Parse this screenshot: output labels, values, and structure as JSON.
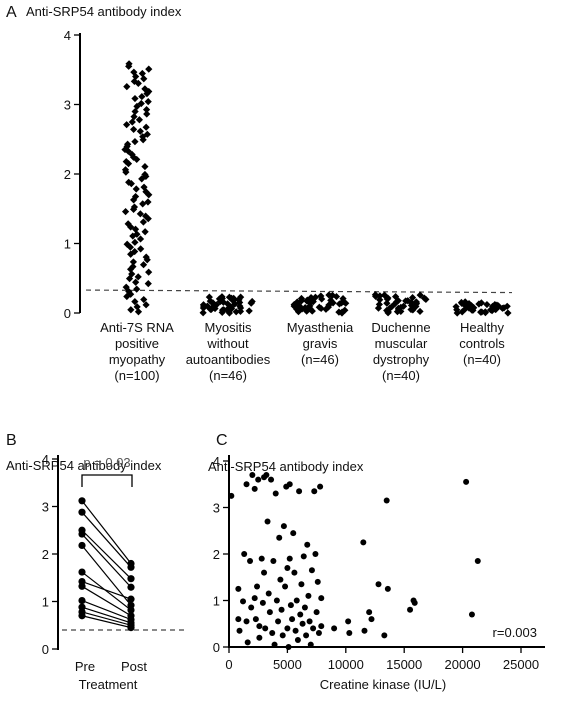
{
  "panels": {
    "a": {
      "letter": "A",
      "title": "Anti-SRP54 antibody index",
      "chart_data": {
        "type": "scatter",
        "subtype": "dot-strip",
        "ylim": [
          0,
          4
        ],
        "yticks": [
          "0",
          "1",
          "2",
          "3",
          "4"
        ],
        "cutoff": 0.33,
        "groups": [
          {
            "lines": [
              "Anti-7S RNA",
              "positive",
              "myopathy",
              "(n=100)"
            ],
            "n": 100,
            "min": 0.0,
            "max": 3.6
          },
          {
            "lines": [
              "Myositis",
              "without",
              "autoantibodies",
              "(n=46)"
            ],
            "n": 46,
            "min": 0.0,
            "max": 0.24
          },
          {
            "lines": [
              "Myasthenia",
              "gravis",
              "(n=46)"
            ],
            "n": 46,
            "min": 0.0,
            "max": 0.26
          },
          {
            "lines": [
              "Duchenne",
              "muscular",
              "dystrophy",
              "(n=40)"
            ],
            "n": 40,
            "min": 0.0,
            "max": 0.27
          },
          {
            "lines": [
              "Healthy",
              "controls",
              "(n=40)"
            ],
            "n": 40,
            "min": 0.0,
            "max": 0.16
          }
        ]
      }
    },
    "b": {
      "letter": "B",
      "title": "Anti-SRP54 antibody index",
      "pvalue": "p = 0.03",
      "xlabel": "Treatment",
      "chart_data": {
        "type": "line",
        "subtype": "paired",
        "categories": [
          "Pre",
          "Post"
        ],
        "ylim": [
          0,
          4
        ],
        "yticks": [
          "0",
          "1",
          "2",
          "3",
          "4"
        ],
        "cutoff": 0.4,
        "pairs": [
          [
            3.12,
            1.8
          ],
          [
            2.88,
            1.72
          ],
          [
            2.5,
            1.48
          ],
          [
            2.42,
            1.3
          ],
          [
            2.18,
            0.92
          ],
          [
            1.62,
            0.82
          ],
          [
            1.42,
            1.05
          ],
          [
            1.32,
            0.7
          ],
          [
            1.02,
            0.62
          ],
          [
            0.88,
            0.55
          ],
          [
            0.78,
            0.5
          ],
          [
            0.7,
            0.45
          ]
        ]
      }
    },
    "c": {
      "letter": "C",
      "title": "Anti-SRP54 antibody index",
      "xlabel": "Creatine kinase (IU/L)",
      "annotation": "r=0.003",
      "chart_data": {
        "type": "scatter",
        "xlim": [
          0,
          25000
        ],
        "ylim": [
          0,
          4
        ],
        "xticks": [
          "0",
          "5000",
          "10000",
          "15000",
          "20000",
          "25000"
        ],
        "yticks": [
          "0",
          "1",
          "2",
          "3",
          "4"
        ],
        "points": [
          [
            200,
            3.25
          ],
          [
            800,
            1.25
          ],
          [
            900,
            0.35
          ],
          [
            1200,
            0.98
          ],
          [
            1500,
            3.5
          ],
          [
            1500,
            0.55
          ],
          [
            1600,
            0.1
          ],
          [
            1800,
            1.85
          ],
          [
            1900,
            0.85
          ],
          [
            2000,
            3.7
          ],
          [
            2200,
            3.4
          ],
          [
            2200,
            1.05
          ],
          [
            2300,
            0.6
          ],
          [
            2400,
            1.3
          ],
          [
            2500,
            3.6
          ],
          [
            2600,
            0.45
          ],
          [
            2600,
            0.2
          ],
          [
            2800,
            1.9
          ],
          [
            2900,
            0.95
          ],
          [
            3000,
            3.65
          ],
          [
            3000,
            1.6
          ],
          [
            3100,
            0.4
          ],
          [
            3200,
            3.7
          ],
          [
            3300,
            2.7
          ],
          [
            3400,
            1.15
          ],
          [
            3500,
            0.75
          ],
          [
            3600,
            3.6
          ],
          [
            3700,
            0.3
          ],
          [
            3800,
            1.85
          ],
          [
            3900,
            0.05
          ],
          [
            4000,
            3.3
          ],
          [
            4100,
            1.0
          ],
          [
            4200,
            0.55
          ],
          [
            4300,
            2.35
          ],
          [
            4400,
            1.45
          ],
          [
            4500,
            0.8
          ],
          [
            4600,
            0.25
          ],
          [
            4700,
            2.6
          ],
          [
            4800,
            1.3
          ],
          [
            4900,
            3.45
          ],
          [
            5000,
            0.4
          ],
          [
            5000,
            1.7
          ],
          [
            5100,
            0.0
          ],
          [
            5200,
            3.5
          ],
          [
            5200,
            1.9
          ],
          [
            5300,
            0.9
          ],
          [
            5400,
            0.6
          ],
          [
            5500,
            2.45
          ],
          [
            5600,
            1.6
          ],
          [
            5700,
            0.35
          ],
          [
            5800,
            1.0
          ],
          [
            5900,
            0.15
          ],
          [
            6000,
            3.35
          ],
          [
            6100,
            0.7
          ],
          [
            6200,
            1.35
          ],
          [
            6300,
            0.5
          ],
          [
            6400,
            1.95
          ],
          [
            6500,
            0.85
          ],
          [
            6600,
            0.25
          ],
          [
            6700,
            2.2
          ],
          [
            6800,
            1.1
          ],
          [
            6900,
            0.55
          ],
          [
            7000,
            0.05
          ],
          [
            7100,
            1.65
          ],
          [
            7200,
            0.4
          ],
          [
            7300,
            3.35
          ],
          [
            7400,
            2.0
          ],
          [
            7500,
            0.75
          ],
          [
            7600,
            1.4
          ],
          [
            7700,
            0.3
          ],
          [
            7800,
            3.45
          ],
          [
            7900,
            1.05
          ],
          [
            7900,
            0.45
          ],
          [
            800,
            0.6
          ],
          [
            1300,
            2.0
          ],
          [
            10200,
            0.55
          ],
          [
            10300,
            0.3
          ],
          [
            11500,
            2.25
          ],
          [
            11600,
            0.35
          ],
          [
            12000,
            0.75
          ],
          [
            12200,
            0.6
          ],
          [
            12800,
            1.35
          ],
          [
            13300,
            0.25
          ],
          [
            13500,
            3.15
          ],
          [
            13600,
            1.25
          ],
          [
            15500,
            0.8
          ],
          [
            15800,
            1.0
          ],
          [
            15900,
            0.95
          ],
          [
            20300,
            3.55
          ],
          [
            20800,
            0.7
          ],
          [
            21300,
            1.85
          ],
          [
            9000,
            0.4
          ]
        ]
      }
    }
  }
}
